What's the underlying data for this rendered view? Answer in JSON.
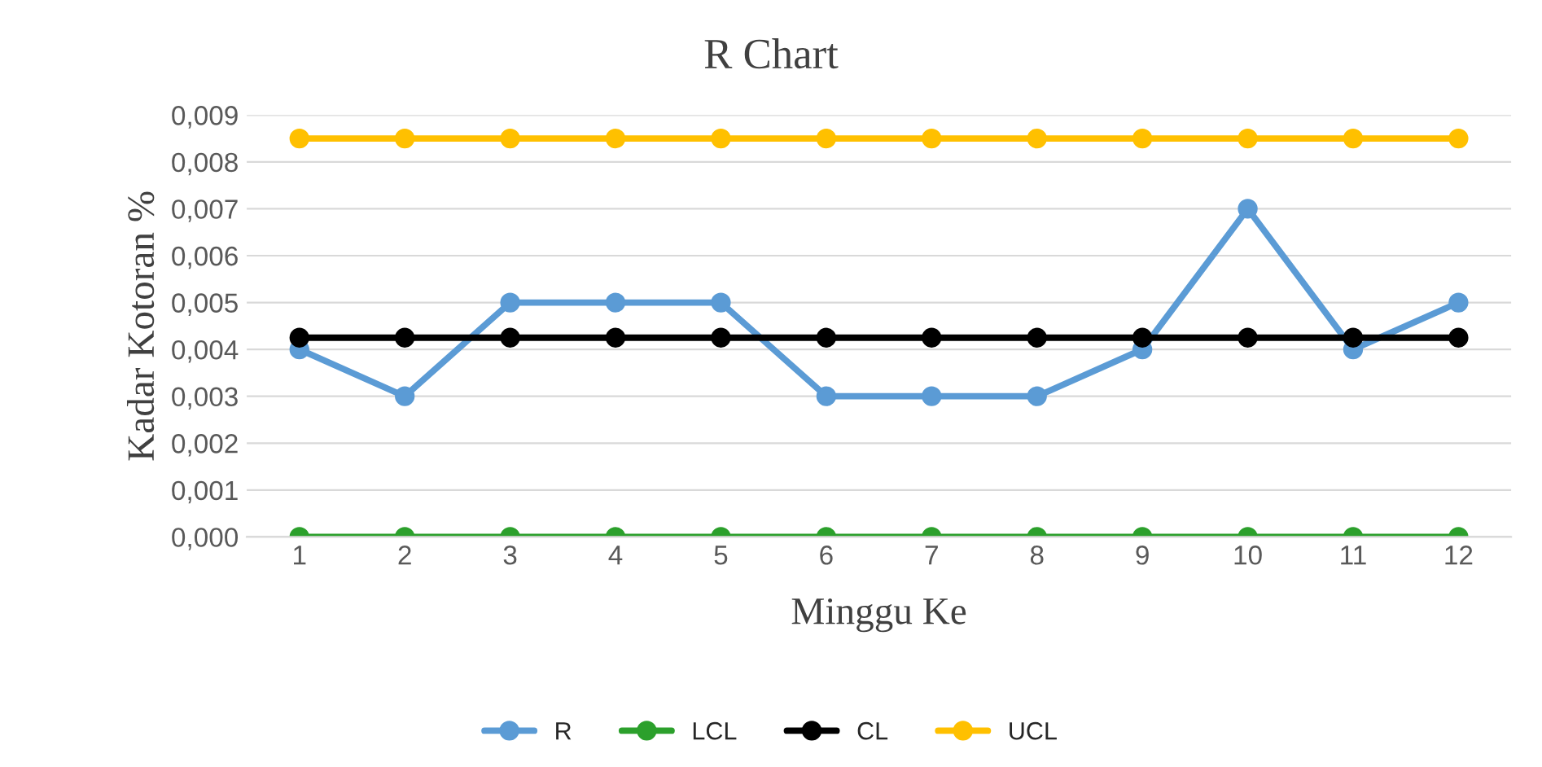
{
  "chart_data": {
    "type": "line",
    "title": "R Chart",
    "xlabel": "Minggu Ke",
    "ylabel": "Kadar Kotoran %",
    "categories": [
      "1",
      "2",
      "3",
      "4",
      "5",
      "6",
      "7",
      "8",
      "9",
      "10",
      "11",
      "12"
    ],
    "series": [
      {
        "name": "R",
        "color": "#5b9bd5",
        "values": [
          0.004,
          0.003,
          0.005,
          0.005,
          0.005,
          0.003,
          0.003,
          0.003,
          0.004,
          0.007,
          0.004,
          0.005
        ]
      },
      {
        "name": "LCL",
        "color": "#2ca02c",
        "values": [
          0,
          0,
          0,
          0,
          0,
          0,
          0,
          0,
          0,
          0,
          0,
          0
        ]
      },
      {
        "name": "CL",
        "color": "#000000",
        "values": [
          0.00425,
          0.00425,
          0.00425,
          0.00425,
          0.00425,
          0.00425,
          0.00425,
          0.00425,
          0.00425,
          0.00425,
          0.00425,
          0.00425
        ]
      },
      {
        "name": "UCL",
        "color": "#ffc000",
        "values": [
          0.0085,
          0.0085,
          0.0085,
          0.0085,
          0.0085,
          0.0085,
          0.0085,
          0.0085,
          0.0085,
          0.0085,
          0.0085,
          0.0085
        ]
      }
    ],
    "ylim": [
      0,
      0.009
    ],
    "yticks": [
      {
        "value": 0,
        "label": "0,000"
      },
      {
        "value": 0.001,
        "label": "0,001"
      },
      {
        "value": 0.002,
        "label": "0,002"
      },
      {
        "value": 0.003,
        "label": "0,003"
      },
      {
        "value": 0.004,
        "label": "0,004"
      },
      {
        "value": 0.005,
        "label": "0,005"
      },
      {
        "value": 0.006,
        "label": "0,006"
      },
      {
        "value": 0.007,
        "label": "0,007"
      },
      {
        "value": 0.008,
        "label": "0,008"
      },
      {
        "value": 0.009,
        "label": "0,009"
      }
    ],
    "grid": "y",
    "legend": "bottom",
    "marker": "circle",
    "line_style": "solid"
  }
}
